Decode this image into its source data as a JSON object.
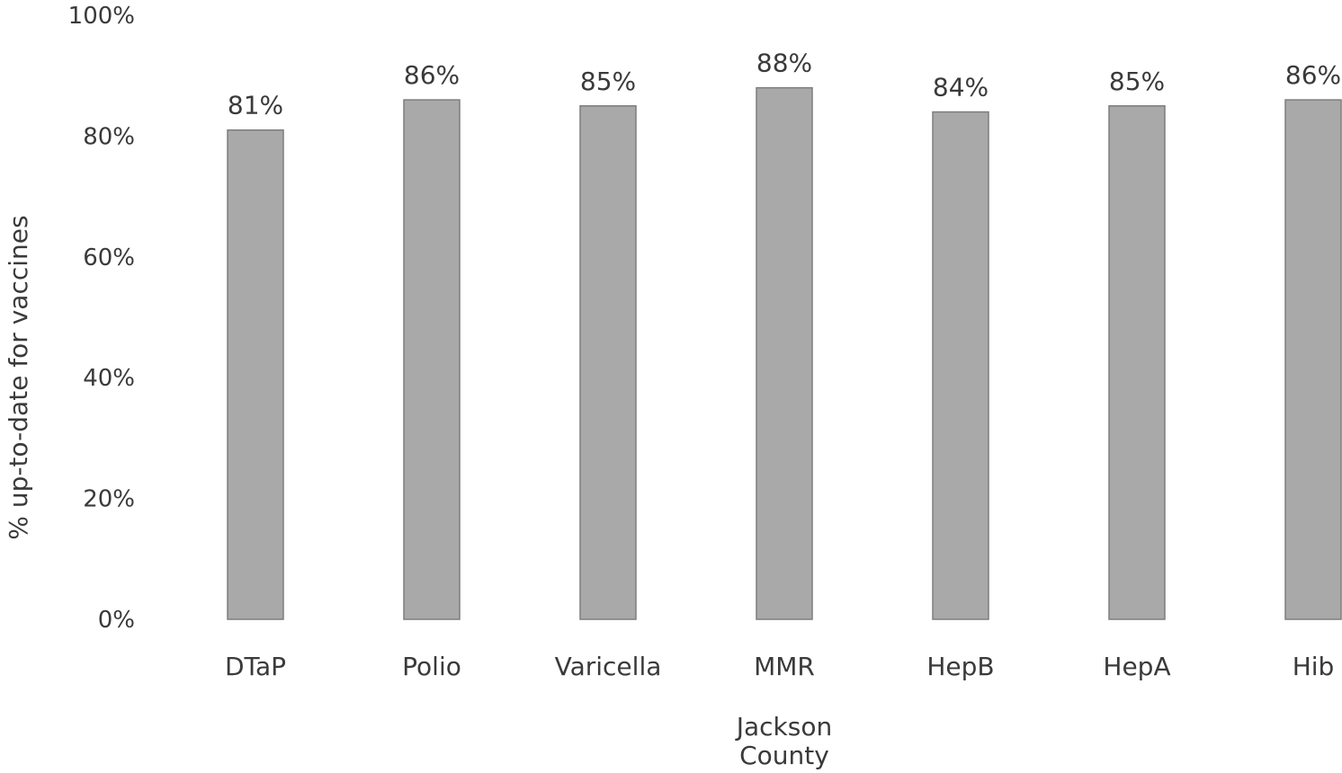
{
  "chart_data": {
    "type": "bar",
    "categories": [
      "DTaP",
      "Polio",
      "Varicella",
      "MMR",
      "HepB",
      "HepA",
      "Hib"
    ],
    "values": [
      81,
      86,
      85,
      88,
      84,
      85,
      86
    ],
    "data_labels": [
      "81%",
      "86%",
      "85%",
      "88%",
      "84%",
      "85%",
      "86%"
    ],
    "title": "",
    "xlabel": "Jackson County",
    "ylabel": "% up-to-date for vaccines",
    "ylim": [
      0,
      100
    ],
    "yticks": [
      0,
      20,
      40,
      60,
      80,
      100
    ],
    "ytick_labels": [
      "0%",
      "20%",
      "40%",
      "60%",
      "80%",
      "100%"
    ],
    "grid": false,
    "legend": "none",
    "bar_color": "#a9a9a9",
    "bar_edge_color": "#7d7d7d"
  }
}
